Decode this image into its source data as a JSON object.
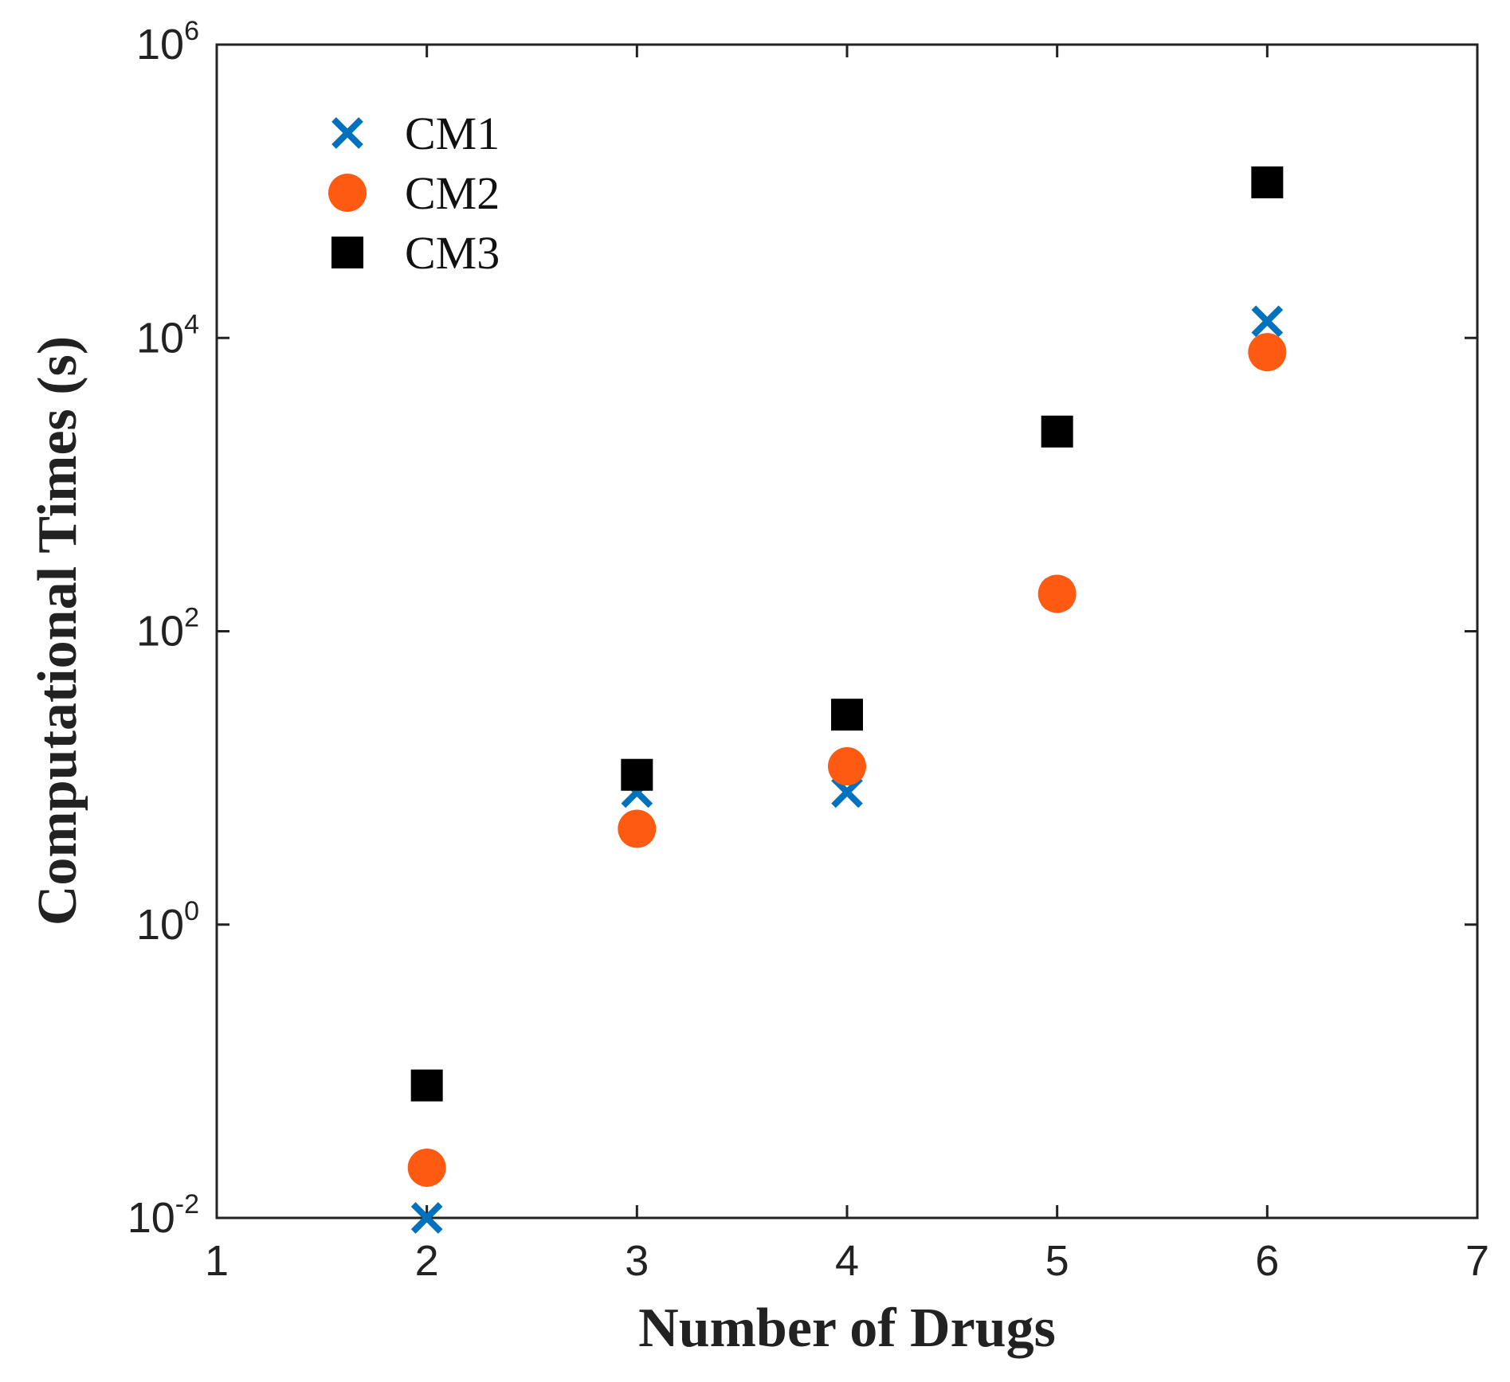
{
  "chart_data": {
    "type": "scatter",
    "title": "",
    "xlabel": "Number of Drugs",
    "ylabel": "Computational Times (s)",
    "xlim": [
      1,
      7
    ],
    "ylim": [
      0.01,
      1000000
    ],
    "yscale": "log",
    "xticks": [
      1,
      2,
      3,
      4,
      5,
      6,
      7
    ],
    "xtick_labels": [
      "1",
      "2",
      "3",
      "4",
      "5",
      "6",
      "7"
    ],
    "yticks": [
      {
        "value": 0.01,
        "base": "10",
        "exp": "-2"
      },
      {
        "value": 1,
        "base": "10",
        "exp": "0"
      },
      {
        "value": 100,
        "base": "10",
        "exp": "2"
      },
      {
        "value": 10000,
        "base": "10",
        "exp": "4"
      },
      {
        "value": 1000000,
        "base": "10",
        "exp": "6"
      }
    ],
    "grid": false,
    "legend_position": "top-left",
    "series": [
      {
        "name": "CM1",
        "marker": "x",
        "color": "#0072bd",
        "x": [
          2,
          3,
          4,
          5,
          6
        ],
        "y": [
          0.01,
          8,
          8,
          180,
          13000
        ]
      },
      {
        "name": "CM2",
        "marker": "circle",
        "color": "#ff5a12",
        "x": [
          2,
          3,
          4,
          5,
          6
        ],
        "y": [
          0.022,
          4.5,
          12,
          180,
          8000
        ]
      },
      {
        "name": "CM3",
        "marker": "square",
        "color": "#000000",
        "x": [
          2,
          3,
          4,
          5,
          6
        ],
        "y": [
          0.08,
          10.5,
          27,
          2300,
          115000
        ]
      }
    ]
  }
}
